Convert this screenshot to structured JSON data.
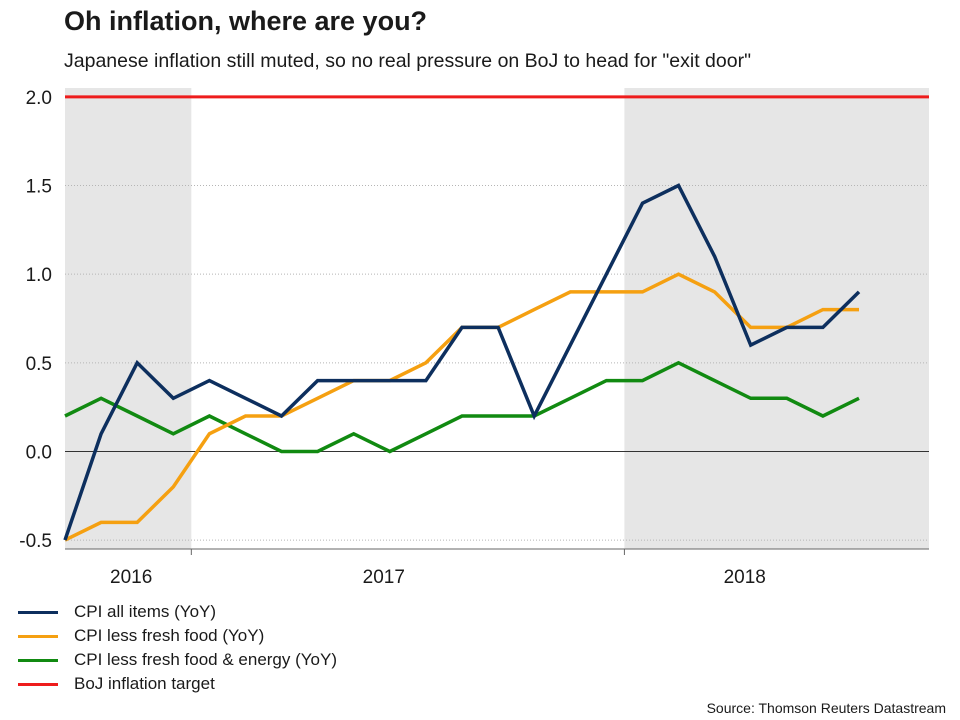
{
  "header": {
    "title": "Oh inflation, where are you?",
    "subtitle": "Japanese inflation still muted, so no real pressure on BoJ to head for \"exit door\""
  },
  "source": "Source: Thomson Reuters Datastream",
  "chart_data": {
    "type": "line",
    "title": "Oh inflation, where are you?",
    "ylim": [
      -0.55,
      2.05
    ],
    "y_ticks": [
      -0.5,
      0.0,
      0.5,
      1.0,
      1.5,
      2.0
    ],
    "y_tick_labels": [
      "-0.5",
      "0.0",
      "0.5",
      "1.0",
      "1.5",
      "2.0"
    ],
    "x_tick_labels": [
      {
        "label": "2016",
        "at_index": 2
      },
      {
        "label": "2017",
        "at_index": 9
      },
      {
        "label": "2018",
        "at_index": 19
      }
    ],
    "x_dividers_after_index": [
      3.5,
      15.5
    ],
    "shaded_index_ranges": [
      [
        0,
        3.5
      ],
      [
        15.5,
        23.5
      ]
    ],
    "x_count": 23,
    "target": {
      "name": "BoJ inflation target",
      "value": 2.0,
      "color": "#ee1c1c"
    },
    "series": [
      {
        "name": "CPI all items (YoY)",
        "color": "#0d2f5e",
        "values": [
          -0.5,
          0.1,
          0.5,
          0.3,
          0.4,
          0.3,
          0.2,
          0.4,
          0.4,
          0.4,
          0.4,
          0.7,
          0.7,
          0.2,
          0.6,
          1.0,
          1.4,
          1.5,
          1.1,
          0.6,
          0.7,
          0.7,
          0.9
        ]
      },
      {
        "name": "CPI less fresh food (YoY)",
        "color": "#f5a011",
        "values": [
          -0.5,
          -0.4,
          -0.4,
          -0.2,
          0.1,
          0.2,
          0.2,
          0.3,
          0.4,
          0.4,
          0.5,
          0.7,
          0.7,
          0.8,
          0.9,
          0.9,
          0.9,
          1.0,
          0.9,
          0.7,
          0.7,
          0.8,
          0.8
        ]
      },
      {
        "name": "CPI less fresh food & energy (YoY)",
        "color": "#118a11",
        "values": [
          0.2,
          0.3,
          0.2,
          0.1,
          0.2,
          0.1,
          0.0,
          0.0,
          0.1,
          0.0,
          0.1,
          0.2,
          0.2,
          0.2,
          0.3,
          0.4,
          0.4,
          0.5,
          0.4,
          0.3,
          0.3,
          0.2,
          0.3
        ]
      }
    ]
  }
}
